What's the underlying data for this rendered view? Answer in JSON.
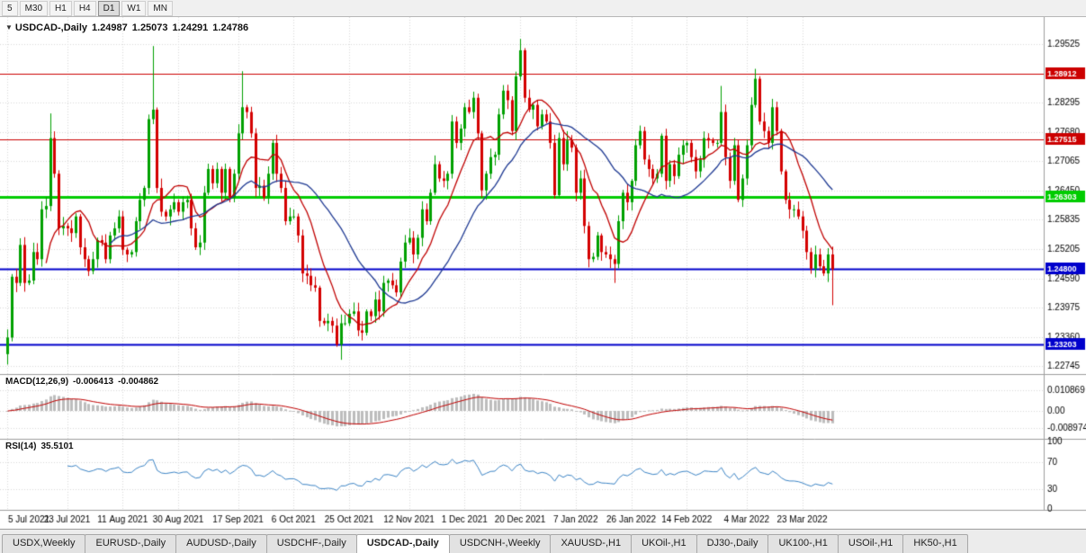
{
  "toolbar": {
    "timeframes": [
      "5",
      "M30",
      "H1",
      "H4",
      "D1",
      "W1",
      "MN"
    ],
    "active": "D1"
  },
  "chart_header": {
    "marker": "▼",
    "symbol": "USDCAD-,Daily",
    "open": "1.24987",
    "high": "1.25073",
    "low": "1.24291",
    "close": "1.24786"
  },
  "indicators": {
    "macd": {
      "label": "MACD(12,26,9)",
      "value1": "-0.006413",
      "value2": "-0.004862",
      "axis_labels": [
        "0.010869",
        "0.00",
        "-0.008974"
      ],
      "params": {
        "fast": 12,
        "slow": 26,
        "signal": 9
      }
    },
    "rsi": {
      "label": "RSI(14)",
      "value": "35.5101",
      "period": 14,
      "axis_labels": [
        "100",
        "70",
        "30",
        "0"
      ],
      "levels": [
        70,
        30
      ]
    }
  },
  "chart_data": {
    "type": "candlestick",
    "symbol": "USDCAD-",
    "timeframe": "Daily",
    "ohlc_display": {
      "open": 1.24987,
      "high": 1.25073,
      "low": 1.24291,
      "close": 1.24786
    },
    "price_range": {
      "min": 1.2258,
      "max": 1.301
    },
    "y_axis_labels": [
      "1.29525",
      "1.28295",
      "1.27680",
      "1.27065",
      "1.26450",
      "1.25835",
      "1.25205",
      "1.24590",
      "1.23975",
      "1.23360",
      "1.22745"
    ],
    "x_labels": [
      {
        "label": "5 Jul 2021",
        "index": 0
      },
      {
        "label": "23 Jul 2021",
        "index": 14
      },
      {
        "label": "11 Aug 2021",
        "index": 27
      },
      {
        "label": "30 Aug 2021",
        "index": 40
      },
      {
        "label": "17 Sep 2021",
        "index": 54
      },
      {
        "label": "6 Oct 2021",
        "index": 67
      },
      {
        "label": "25 Oct 2021",
        "index": 80
      },
      {
        "label": "12 Nov 2021",
        "index": 94
      },
      {
        "label": "1 Dec 2021",
        "index": 107
      },
      {
        "label": "20 Dec 2021",
        "index": 120
      },
      {
        "label": "7 Jan 2022",
        "index": 133
      },
      {
        "label": "26 Jan 2022",
        "index": 146
      },
      {
        "label": "14 Feb 2022",
        "index": 159
      },
      {
        "label": "4 Mar 2022",
        "index": 173
      },
      {
        "label": "23 Mar 2022",
        "index": 186
      }
    ],
    "first_open": 1.23,
    "closes": [
      1.2335,
      1.2463,
      1.245,
      1.253,
      1.245,
      1.2455,
      1.2515,
      1.25,
      1.2605,
      1.2612,
      1.2755,
      1.268,
      1.2565,
      1.257,
      1.2565,
      1.2555,
      1.259,
      1.2525,
      1.25,
      1.2475,
      1.25,
      1.254,
      1.2535,
      1.25,
      1.255,
      1.2565,
      1.259,
      1.252,
      1.251,
      1.2515,
      1.258,
      1.2625,
      1.265,
      1.2795,
      1.2815,
      1.265,
      1.26,
      1.259,
      1.2605,
      1.262,
      1.26,
      1.262,
      1.2625,
      1.2565,
      1.2525,
      1.2535,
      1.264,
      1.269,
      1.266,
      1.269,
      1.264,
      1.269,
      1.263,
      1.268,
      1.2765,
      1.282,
      1.281,
      1.2765,
      1.265,
      1.2655,
      1.263,
      1.268,
      1.2745,
      1.268,
      1.265,
      1.258,
      1.259,
      1.259,
      1.255,
      1.247,
      1.2465,
      1.2445,
      1.244,
      1.237,
      1.2365,
      1.237,
      1.236,
      1.232,
      1.2365,
      1.2365,
      1.2385,
      1.239,
      1.235,
      1.2345,
      1.239,
      1.238,
      1.2415,
      1.239,
      1.245,
      1.2455,
      1.2445,
      1.243,
      1.2495,
      1.2535,
      1.2545,
      1.251,
      1.2545,
      1.2605,
      1.258,
      1.264,
      1.27,
      1.267,
      1.2665,
      1.268,
      1.279,
      1.2745,
      1.2775,
      1.282,
      1.281,
      1.284,
      1.2765,
      1.2645,
      1.268,
      1.2715,
      1.272,
      1.2805,
      1.2855,
      1.2835,
      1.277,
      1.2885,
      1.294,
      1.284,
      1.2815,
      1.2825,
      1.278,
      1.2805,
      1.279,
      1.2745,
      1.2635,
      1.2755,
      1.27,
      1.275,
      1.2735,
      1.264,
      1.267,
      1.257,
      1.25,
      1.2505,
      1.255,
      1.2515,
      1.251,
      1.25,
      1.249,
      1.258,
      1.264,
      1.262,
      1.2665,
      1.274,
      1.277,
      1.271,
      1.269,
      1.267,
      1.268,
      1.276,
      1.2665,
      1.27,
      1.2675,
      1.272,
      1.274,
      1.2745,
      1.2715,
      1.2685,
      1.271,
      1.2755,
      1.275,
      1.2745,
      1.2745,
      1.281,
      1.2715,
      1.2665,
      1.274,
      1.2625,
      1.267,
      1.274,
      1.2825,
      1.288,
      1.279,
      1.277,
      1.2745,
      1.282,
      1.277,
      1.2685,
      1.2625,
      1.2605,
      1.2605,
      1.259,
      1.256,
      1.2515,
      1.248,
      1.251,
      1.2485,
      1.247,
      1.251,
      1.24786
    ],
    "special_wicks": {
      "0": {
        "low": 1.2278
      },
      "10": {
        "high": 1.2807
      },
      "34": {
        "high": 1.2949
      },
      "55": {
        "high": 1.2896
      },
      "78": {
        "low": 1.2288
      },
      "120": {
        "high": 1.2964
      },
      "142": {
        "low": 1.245
      },
      "167": {
        "high": 1.2865
      },
      "175": {
        "high": 1.2901
      },
      "193": {
        "low": 1.2403
      }
    },
    "hlines": [
      {
        "price": 1.28912,
        "label": "1.28912",
        "color": "#cc0000",
        "width": 1
      },
      {
        "price": 1.27515,
        "label": "1.27515",
        "color": "#cc0000",
        "width": 1
      },
      {
        "price": 1.26303,
        "label": "1.26303",
        "color": "#00cc00",
        "width": 3
      },
      {
        "price": 1.248,
        "label": "1.24800",
        "color": "#0000cc",
        "width": 2
      },
      {
        "price": 1.23203,
        "label": "1.23203",
        "color": "#0000cc",
        "width": 2
      }
    ],
    "moving_averages": [
      {
        "period": 10,
        "color": "#c00000"
      },
      {
        "period": 25,
        "color": "#1f3a93"
      }
    ],
    "colors": {
      "up": "#00a000",
      "down": "#d40000",
      "grid": "#d9d9d9",
      "separator": "#9e9e9e",
      "macd_hist": "#bdbdbd",
      "macd_signal": "#c00000",
      "rsi_line": "#3d85c6",
      "axis_text": "#000000"
    }
  },
  "tabs": [
    {
      "label": "USDX,Weekly",
      "active": false
    },
    {
      "label": "EURUSD-,Daily",
      "active": false
    },
    {
      "label": "AUDUSD-,Daily",
      "active": false
    },
    {
      "label": "USDCHF-,Daily",
      "active": false
    },
    {
      "label": "USDCAD-,Daily",
      "active": true
    },
    {
      "label": "USDCNH-,Weekly",
      "active": false
    },
    {
      "label": "XAUUSD-,H1",
      "active": false
    },
    {
      "label": "UKOil-,H1",
      "active": false
    },
    {
      "label": "DJ30-,Daily",
      "active": false
    },
    {
      "label": "UK100-,H1",
      "active": false
    },
    {
      "label": "USOil-,H1",
      "active": false
    },
    {
      "label": "HK50-,H1",
      "active": false
    }
  ]
}
